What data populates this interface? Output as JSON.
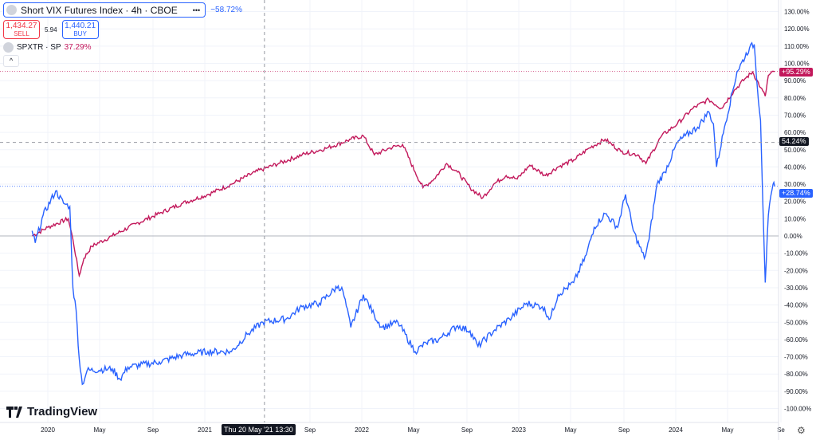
{
  "legend": {
    "title": "Short VIX Futures Index · 4h · CBOE",
    "more": "•••",
    "change": "−58.72%",
    "sell_price": "1,434.27",
    "sell_label": "SELL",
    "spread": "5.94",
    "buy_price": "1,440.21",
    "buy_label": "BUY",
    "compare": "SPXTR · SP",
    "compare_change": "37.29%",
    "collapse": "^"
  },
  "logo": "TradingView",
  "crosshair": {
    "date_label": "Thu 20 May '21   13:30",
    "price_label": "54.24%",
    "year": 2021.38,
    "value": 54.24
  },
  "last_labels": {
    "red": "+95.29%",
    "blue": "+28.74%"
  },
  "colors": {
    "red": "#c2185b",
    "blue": "#2962ff"
  },
  "chart_data": {
    "type": "line",
    "ylim": [
      -100,
      130
    ],
    "xlim": [
      2019.9,
      2024.7
    ],
    "y_ticks": [
      "130.00%",
      "120.00%",
      "110.00%",
      "100.00%",
      "90.00%",
      "80.00%",
      "70.00%",
      "60.00%",
      "50.00%",
      "40.00%",
      "30.00%",
      "20.00%",
      "10.00%",
      "0.00%",
      "-10.00%",
      "-20.00%",
      "-30.00%",
      "-40.00%",
      "-50.00%",
      "-60.00%",
      "-70.00%",
      "-80.00%",
      "-90.00%",
      "-100.00%"
    ],
    "x_ticks": [
      {
        "label": "2020",
        "x": 2020.0
      },
      {
        "label": "May",
        "x": 2020.33
      },
      {
        "label": "Sep",
        "x": 2020.67
      },
      {
        "label": "2021",
        "x": 2021.0
      },
      {
        "label": "Sep",
        "x": 2021.67
      },
      {
        "label": "2022",
        "x": 2022.0
      },
      {
        "label": "May",
        "x": 2022.33
      },
      {
        "label": "Sep",
        "x": 2022.67
      },
      {
        "label": "2023",
        "x": 2023.0
      },
      {
        "label": "May",
        "x": 2023.33
      },
      {
        "label": "Sep",
        "x": 2023.67
      },
      {
        "label": "2024",
        "x": 2024.0
      },
      {
        "label": "May",
        "x": 2024.33
      },
      {
        "label": "Se",
        "x": 2024.67
      }
    ],
    "series": [
      {
        "name": "SPXTR · SP",
        "color": "#c2185b",
        "points": [
          [
            2019.9,
            0
          ],
          [
            2020.0,
            5
          ],
          [
            2020.13,
            10
          ],
          [
            2020.16,
            -2
          ],
          [
            2020.2,
            -23
          ],
          [
            2020.23,
            -13
          ],
          [
            2020.28,
            -6
          ],
          [
            2020.41,
            0
          ],
          [
            2020.56,
            7
          ],
          [
            2020.71,
            13
          ],
          [
            2020.86,
            19
          ],
          [
            2021.02,
            24
          ],
          [
            2021.17,
            30
          ],
          [
            2021.32,
            37
          ],
          [
            2021.47,
            42
          ],
          [
            2021.62,
            47
          ],
          [
            2021.78,
            51
          ],
          [
            2021.93,
            56
          ],
          [
            2022.01,
            58
          ],
          [
            2022.08,
            47
          ],
          [
            2022.18,
            51
          ],
          [
            2022.26,
            53
          ],
          [
            2022.34,
            37
          ],
          [
            2022.39,
            28
          ],
          [
            2022.46,
            33
          ],
          [
            2022.54,
            42
          ],
          [
            2022.61,
            37
          ],
          [
            2022.69,
            28
          ],
          [
            2022.77,
            22
          ],
          [
            2022.84,
            30
          ],
          [
            2022.92,
            35
          ],
          [
            2022.99,
            33
          ],
          [
            2023.07,
            41
          ],
          [
            2023.17,
            35
          ],
          [
            2023.25,
            40
          ],
          [
            2023.35,
            44
          ],
          [
            2023.45,
            51
          ],
          [
            2023.55,
            56
          ],
          [
            2023.65,
            49
          ],
          [
            2023.76,
            47
          ],
          [
            2023.81,
            42
          ],
          [
            2023.91,
            58
          ],
          [
            2024.01,
            65
          ],
          [
            2024.11,
            74
          ],
          [
            2024.21,
            79
          ],
          [
            2024.29,
            74
          ],
          [
            2024.37,
            84
          ],
          [
            2024.44,
            91
          ],
          [
            2024.49,
            95
          ],
          [
            2024.54,
            86
          ],
          [
            2024.57,
            81
          ],
          [
            2024.59,
            93
          ],
          [
            2024.63,
            95.29
          ]
        ]
      },
      {
        "name": "Short VIX Futures Index",
        "color": "#2962ff",
        "points": [
          [
            2019.9,
            3
          ],
          [
            2019.92,
            -4
          ],
          [
            2019.97,
            12
          ],
          [
            2020.05,
            26
          ],
          [
            2020.1,
            19
          ],
          [
            2020.14,
            17
          ],
          [
            2020.16,
            -30
          ],
          [
            2020.18,
            -43
          ],
          [
            2020.2,
            -71
          ],
          [
            2020.22,
            -86
          ],
          [
            2020.25,
            -78
          ],
          [
            2020.41,
            -77
          ],
          [
            2020.46,
            -83
          ],
          [
            2020.51,
            -76
          ],
          [
            2020.71,
            -73
          ],
          [
            2020.86,
            -69
          ],
          [
            2021.02,
            -67
          ],
          [
            2021.17,
            -67
          ],
          [
            2021.27,
            -57
          ],
          [
            2021.37,
            -50
          ],
          [
            2021.52,
            -48
          ],
          [
            2021.62,
            -41
          ],
          [
            2021.73,
            -39
          ],
          [
            2021.85,
            -29
          ],
          [
            2021.88,
            -32
          ],
          [
            2021.93,
            -53
          ],
          [
            2022.01,
            -34
          ],
          [
            2022.08,
            -46
          ],
          [
            2022.13,
            -53
          ],
          [
            2022.23,
            -50
          ],
          [
            2022.34,
            -67
          ],
          [
            2022.41,
            -62
          ],
          [
            2022.49,
            -60
          ],
          [
            2022.61,
            -52
          ],
          [
            2022.69,
            -55
          ],
          [
            2022.74,
            -64
          ],
          [
            2022.84,
            -55
          ],
          [
            2022.94,
            -48
          ],
          [
            2023.05,
            -39
          ],
          [
            2023.15,
            -41
          ],
          [
            2023.2,
            -48
          ],
          [
            2023.25,
            -34
          ],
          [
            2023.35,
            -27
          ],
          [
            2023.43,
            -11
          ],
          [
            2023.48,
            5
          ],
          [
            2023.55,
            13
          ],
          [
            2023.63,
            5
          ],
          [
            2023.68,
            24
          ],
          [
            2023.73,
            3
          ],
          [
            2023.8,
            -13
          ],
          [
            2023.83,
            -2
          ],
          [
            2023.88,
            30
          ],
          [
            2023.93,
            37
          ],
          [
            2024.01,
            54
          ],
          [
            2024.06,
            58
          ],
          [
            2024.14,
            63
          ],
          [
            2024.21,
            72
          ],
          [
            2024.24,
            65
          ],
          [
            2024.26,
            40
          ],
          [
            2024.31,
            63
          ],
          [
            2024.39,
            95
          ],
          [
            2024.47,
            109
          ],
          [
            2024.5,
            111
          ],
          [
            2024.52,
            86
          ],
          [
            2024.54,
            67
          ],
          [
            2024.57,
            -27
          ],
          [
            2024.59,
            12
          ],
          [
            2024.62,
            30
          ],
          [
            2024.63,
            28.74
          ]
        ]
      }
    ]
  }
}
